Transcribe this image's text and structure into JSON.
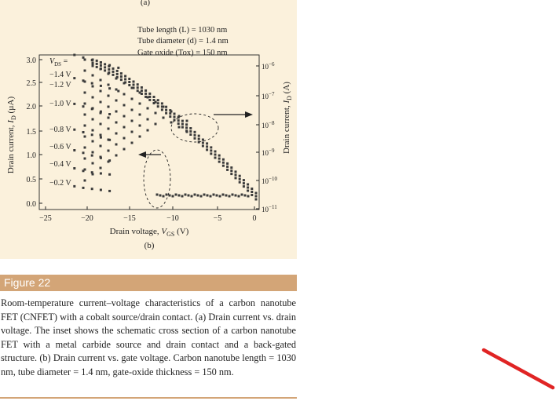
{
  "figure": {
    "panel_a_label": "(a)",
    "panel_b_label": "(b)",
    "params": [
      "Tube length (L) = 1030 nm",
      "Tube diameter (d) = 1.4 nm",
      "Gate oxide (Tox) = 150 nm"
    ],
    "vds_header": "VDS =",
    "curve_labels": [
      "−1.4 V",
      "−1.2 V",
      "−1.0 V",
      "−0.8 V",
      "−0.6 V",
      "−0.4 V",
      "−0.2 V"
    ],
    "x_axis_label": "Drain voltage, VGS (V)",
    "y_left_label": "Drain current, ID (µA)",
    "y_right_label": "Drain current, ID (A)"
  },
  "chart_data": {
    "type": "scatter",
    "xlabel": "Drain voltage, VGS (V)",
    "ylabel": "Drain current, ID (µA)",
    "ylabel_right": "Drain current, ID (A)",
    "xlim": [
      -25,
      0
    ],
    "ylim": [
      0,
      3.0
    ],
    "x_ticks": [
      "−25",
      "−20",
      "−15",
      "−10",
      "−5",
      "0"
    ],
    "y_ticks": [
      "0.0",
      "0.5",
      "1.0",
      "1.5",
      "2.0",
      "2.5",
      "3.0"
    ],
    "y_right_ticks": [
      "10^-11",
      "10^-10",
      "10^-9",
      "10^-8",
      "10^-7",
      "10^-6"
    ],
    "series": [
      {
        "name": "−1.4 V",
        "x": [
          -21,
          -20,
          -19,
          -18,
          -17,
          -16
        ],
        "y": [
          3.0,
          2.95,
          2.9,
          2.85,
          2.8,
          2.75
        ]
      },
      {
        "name": "−1.2 V",
        "x": [
          -21,
          -20,
          -19,
          -18,
          -17,
          -16
        ],
        "y": [
          2.55,
          2.5,
          2.45,
          2.4,
          2.35,
          2.3
        ]
      },
      {
        "name": "−1.0 V",
        "x": [
          -21,
          -20,
          -19,
          -18,
          -17
        ],
        "y": [
          2.05,
          2.0,
          1.95,
          1.9,
          1.85
        ]
      },
      {
        "name": "−0.8 V",
        "x": [
          -21,
          -20,
          -19,
          -18,
          -17
        ],
        "y": [
          1.55,
          1.5,
          1.45,
          1.4,
          1.35
        ]
      },
      {
        "name": "−0.6 V",
        "x": [
          -21,
          -20,
          -19,
          -18,
          -17
        ],
        "y": [
          1.15,
          1.1,
          1.05,
          1.0,
          0.95
        ]
      },
      {
        "name": "−0.4 V",
        "x": [
          -21,
          -20,
          -19,
          -18,
          -17
        ],
        "y": [
          0.8,
          0.75,
          0.72,
          0.7,
          0.68
        ]
      },
      {
        "name": "−0.2 V",
        "x": [
          -21,
          -20,
          -19,
          -18,
          -17
        ],
        "y": [
          0.45,
          0.42,
          0.4,
          0.38,
          0.36
        ]
      }
    ]
  },
  "caption": {
    "title": "Figure 22",
    "text": "Room-temperature current–voltage characteristics of a carbon nanotube FET (CNFET) with a cobalt source/drain contact. (a) Drain current vs. drain voltage. The inset shows the schematic cross section of a carbon nanotube FET with a metal carbide source and drain contact and a back-gated structure. (b) Drain current vs. gate voltage. Carbon nanotube length = 1030 nm, tube diameter = 1.4 nm, gate-oxide thickness = 150 nm."
  },
  "colors": {
    "panel_bg": "#fbf1dc",
    "caption_bar": "#d3a577",
    "annotation_red": "#e02424"
  }
}
